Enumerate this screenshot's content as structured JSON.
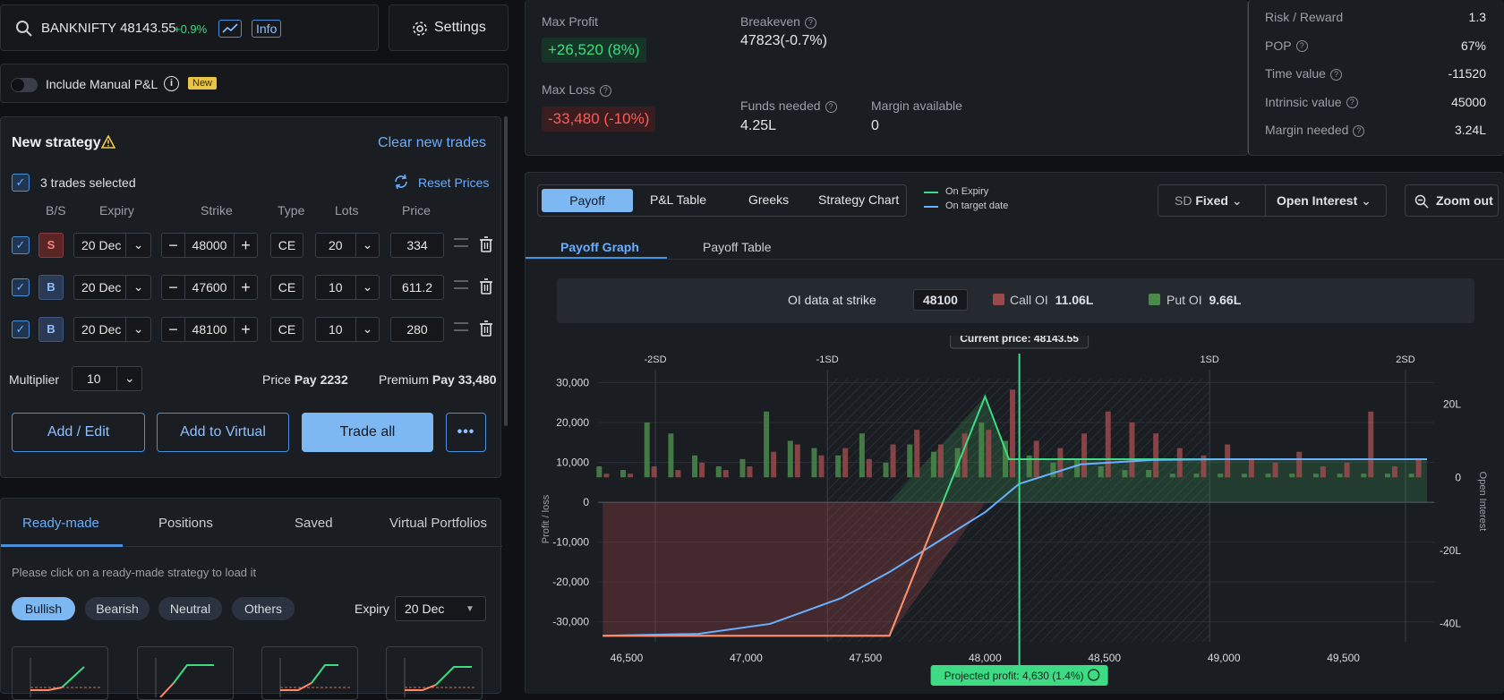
{
  "search": {
    "symbol": "BANKNIFTY 48143.55",
    "change": "+0.9%",
    "info": "Info"
  },
  "settings_label": "Settings",
  "manual_pl": {
    "label": "Include Manual P&L",
    "badge": "New"
  },
  "strategy": {
    "title": "New strategy",
    "clear": "Clear new trades",
    "selected": "3 trades selected",
    "reset": "Reset Prices",
    "headers": [
      "B/S",
      "Expiry",
      "Strike",
      "Type",
      "Lots",
      "Price"
    ],
    "rows": [
      {
        "side": "S",
        "expiry": "20 Dec",
        "strike": "48000",
        "type": "CE",
        "lots": "20",
        "price": "334"
      },
      {
        "side": "B",
        "expiry": "20 Dec",
        "strike": "47600",
        "type": "CE",
        "lots": "10",
        "price": "611.2"
      },
      {
        "side": "B",
        "expiry": "20 Dec",
        "strike": "48100",
        "type": "CE",
        "lots": "10",
        "price": "280"
      }
    ],
    "multiplier_label": "Multiplier",
    "multiplier": "10",
    "price_label": "Price",
    "price_value": "Pay 2232",
    "premium_label": "Premium",
    "premium_value": "Pay 33,480",
    "buttons": {
      "add_edit": "Add / Edit",
      "virtual": "Add to Virtual",
      "trade": "Trade all"
    }
  },
  "lower_tabs": [
    "Ready-made",
    "Positions",
    "Saved",
    "Virtual Portfolios"
  ],
  "readymade": {
    "hint": "Please click on a ready-made strategy to load it",
    "filters": [
      "Bullish",
      "Bearish",
      "Neutral",
      "Others"
    ],
    "expiry_label": "Expiry",
    "expiry": "20 Dec"
  },
  "summary": {
    "max_profit_label": "Max Profit",
    "max_profit": "+26,520 (8%)",
    "max_loss_label": "Max Loss",
    "max_loss": "-33,480 (-10%)",
    "breakeven_label": "Breakeven",
    "breakeven": "47823(-0.7%)",
    "funds_label": "Funds needed",
    "funds": "4.25L",
    "margin_label": "Margin available",
    "margin": "0"
  },
  "stats": [
    {
      "label": "Risk / Reward",
      "value": "1.3",
      "help": false
    },
    {
      "label": "POP",
      "value": "67%",
      "help": true
    },
    {
      "label": "Time value",
      "value": "-11520",
      "help": true
    },
    {
      "label": "Intrinsic value",
      "value": "45000",
      "help": true
    },
    {
      "label": "Margin needed",
      "value": "3.24L",
      "help": true
    }
  ],
  "chart_tabs": [
    "Payoff",
    "P&L Table",
    "Greeks",
    "Strategy Chart"
  ],
  "legend": {
    "expiry": "On Expiry",
    "target": "On target date"
  },
  "controls": {
    "sd": "SD",
    "sd_mode": "Fixed",
    "oi": "Open Interest",
    "zoom": "Zoom out"
  },
  "sub_tabs": [
    "Payoff Graph",
    "Payoff Table"
  ],
  "oi_bar": {
    "label": "OI data at strike",
    "strike": "48100",
    "call_label": "Call OI",
    "call": "11.06L",
    "put_label": "Put OI",
    "put": "9.66L"
  },
  "colors": {
    "accent": "#4a8fd9",
    "profit": "#3ddc84",
    "loss": "#ff5a5a",
    "call_oi": "#9b4a4a",
    "put_oi": "#4a8a4a"
  },
  "chart_data": {
    "type": "line",
    "current_price_label": "Current price: 48143.55",
    "current_price": 48143.55,
    "projected": "Projected profit: 4,630 (1.4%)",
    "sd_labels": [
      "-2SD",
      "-1SD",
      "1SD",
      "2SD"
    ],
    "sd_x": [
      46620,
      47340,
      48940,
      49760
    ],
    "x_ticks": [
      "46,500",
      "47,000",
      "47,500",
      "48,000",
      "48,500",
      "49,000",
      "49,500"
    ],
    "x_tick_values": [
      46500,
      47000,
      47500,
      48000,
      48500,
      49000,
      49500
    ],
    "y_ticks": [
      "30,000",
      "20,000",
      "10,000",
      "0",
      "-10,000",
      "-20,000",
      "-30,000"
    ],
    "y_tick_values": [
      30000,
      20000,
      10000,
      0,
      -10000,
      -20000,
      -30000
    ],
    "y2_ticks": [
      "20L",
      "0",
      "-20L",
      "-40L"
    ],
    "y2_tick_values": [
      20,
      0,
      -20,
      -40
    ],
    "ylabel": "Profit / loss",
    "y2label": "Open Interest",
    "xlim": [
      46380,
      49880
    ],
    "ylim": [
      -35000,
      31000
    ],
    "y2lim": [
      -45,
      27
    ],
    "series": [
      {
        "name": "On Expiry",
        "color": "#3ddc84",
        "x": [
          46400,
          47600,
          48000,
          48100,
          49850
        ],
        "y": [
          -33480,
          -33480,
          26520,
          10800,
          10800
        ]
      },
      {
        "name": "On target date",
        "color": "#6ab0ff",
        "x": [
          46400,
          46800,
          47100,
          47400,
          47600,
          47800,
          48000,
          48143,
          48400,
          48700,
          49000,
          49850
        ],
        "y": [
          -33480,
          -33000,
          -30500,
          -24000,
          -17500,
          -10000,
          -2500,
          4630,
          9500,
          10600,
          10800,
          10800
        ]
      }
    ],
    "oi_strikes": [
      46400,
      46500,
      46600,
      46700,
      46800,
      46900,
      47000,
      47100,
      47200,
      47300,
      47400,
      47500,
      47600,
      47700,
      47800,
      47900,
      48000,
      48100,
      48200,
      48300,
      48400,
      48500,
      48600,
      48700,
      48800,
      48900,
      49000,
      49100,
      49200,
      49300,
      49400,
      49500,
      49600,
      49700,
      49800
    ],
    "put_oi": [
      3,
      2,
      15,
      12,
      6,
      3,
      5,
      18,
      10,
      8,
      6,
      12,
      4,
      9,
      7,
      8,
      15,
      10,
      6,
      4,
      5,
      3,
      2,
      2,
      1,
      1,
      1,
      1,
      1,
      1,
      1,
      1,
      1,
      1,
      1
    ],
    "call_oi": [
      1,
      1,
      3,
      2,
      4,
      2,
      3,
      7,
      9,
      6,
      8,
      5,
      9,
      13,
      9,
      12,
      13,
      24,
      10,
      8,
      12,
      18,
      15,
      12,
      8,
      6,
      9,
      5,
      4,
      7,
      3,
      4,
      18,
      3,
      5
    ]
  }
}
